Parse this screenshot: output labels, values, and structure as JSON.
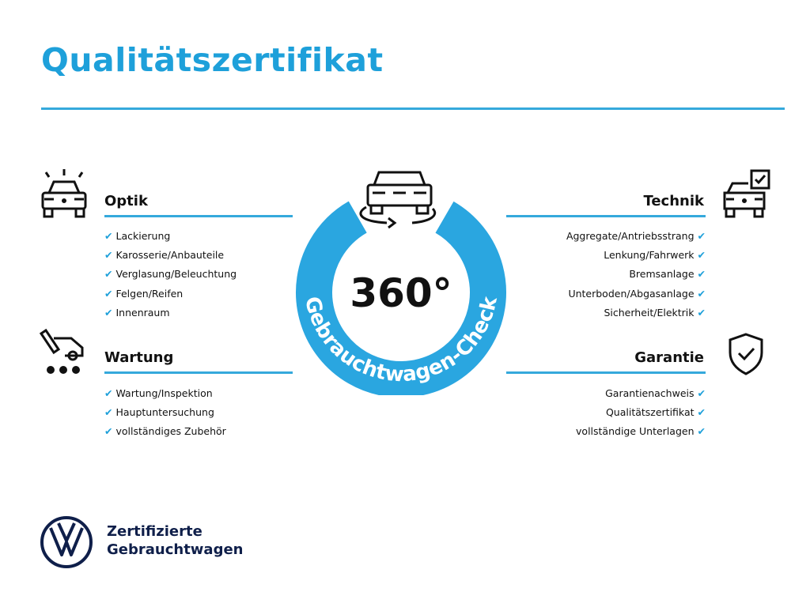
{
  "title": "Qualitätszertifikat",
  "colors": {
    "accent": "#1ea0da",
    "ring": "#2aa6e0",
    "brand": "#0f1f4a"
  },
  "center": {
    "number": "360°",
    "arc_text": "Gebrauchtwagen-Check",
    "icon": "car-rotate-icon"
  },
  "sections": {
    "optik": {
      "title": "Optik",
      "icon": "car-headlights-icon",
      "items": [
        "Lackierung",
        "Karosserie/Anbauteile",
        "Verglasung/Beleuchtung",
        "Felgen/Reifen",
        "Innenraum"
      ]
    },
    "wartung": {
      "title": "Wartung",
      "icon": "car-service-icon",
      "items": [
        "Wartung/Inspektion",
        "Hauptuntersuchung",
        "vollständiges Zubehör"
      ]
    },
    "technik": {
      "title": "Technik",
      "icon": "car-checklist-icon",
      "items": [
        "Aggregate/Antriebsstrang",
        "Lenkung/Fahrwerk",
        "Bremsanlage",
        "Unterboden/Abgasanlage",
        "Sicherheit/Elektrik"
      ]
    },
    "garantie": {
      "title": "Garantie",
      "icon": "shield-check-icon",
      "items": [
        "Garantienachweis",
        "Qualitätszertifikat",
        "vollständige Unterlagen"
      ]
    }
  },
  "check_glyph": "✔",
  "brand": {
    "line1": "Zertifizierte",
    "line2": "Gebrauchtwagen",
    "logo": "vw-logo"
  }
}
